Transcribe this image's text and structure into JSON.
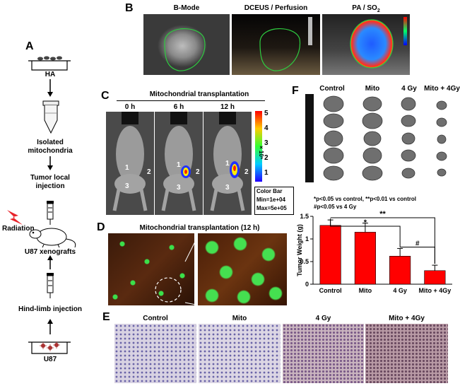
{
  "panels": {
    "A": "A",
    "B": "B",
    "C": "C",
    "D": "D",
    "E": "E",
    "F": "F"
  },
  "panel_a": {
    "steps": [
      "HA",
      "Isolated",
      "mitochondria",
      "Tumor local",
      "injection",
      "U87 xenografts",
      "Hind-limb injection",
      "U87"
    ],
    "radiation_label": "Radiation"
  },
  "panel_b": {
    "titles": [
      "B-Mode",
      "DCEUS / Perfusion",
      "PA / SO"
    ],
    "so_subscript": "2"
  },
  "panel_c": {
    "title": "Mitochondrial transplantation",
    "timepoints": [
      "0 h",
      "6 h",
      "12 h"
    ],
    "colorbar_ticks": [
      "5",
      "4",
      "3",
      "2",
      "1"
    ],
    "colorbar_exponent": "× 10⁵",
    "colorbar_box": [
      "Color Bar",
      "Min=1e+04",
      "Max=5e+05"
    ],
    "markers": [
      "1",
      "2",
      "3"
    ]
  },
  "panel_d": {
    "title": "Mitochondrial transplantation (12 h)"
  },
  "panel_e": {
    "groups": [
      "Control",
      "Mito",
      "4 Gy",
      "Mito + 4Gy"
    ]
  },
  "panel_f": {
    "groups": [
      "Control",
      "Mito",
      "4 Gy",
      "Mito + 4Gy"
    ],
    "stats_line1": "*p<0.05 vs control, **p<0.01 vs control",
    "stats_line2": "#p<0.05 vs 4 Gy",
    "sig_markers": [
      "*",
      "**",
      "#"
    ]
  },
  "colors": {
    "bar": "#ff0000",
    "tumor": "#6f6f6f"
  },
  "chart_data": {
    "type": "bar",
    "categories": [
      "Control",
      "Mito",
      "4 Gy",
      "Mito + 4Gy"
    ],
    "values": [
      1.3,
      1.15,
      0.62,
      0.3
    ],
    "errors": [
      0.12,
      0.2,
      0.17,
      0.12
    ],
    "ylabel": "Tumor Weight (g)",
    "ylim": [
      0,
      1.5
    ],
    "yticks": [
      "0",
      "0.5",
      "1",
      "1.5"
    ],
    "grid": false
  }
}
